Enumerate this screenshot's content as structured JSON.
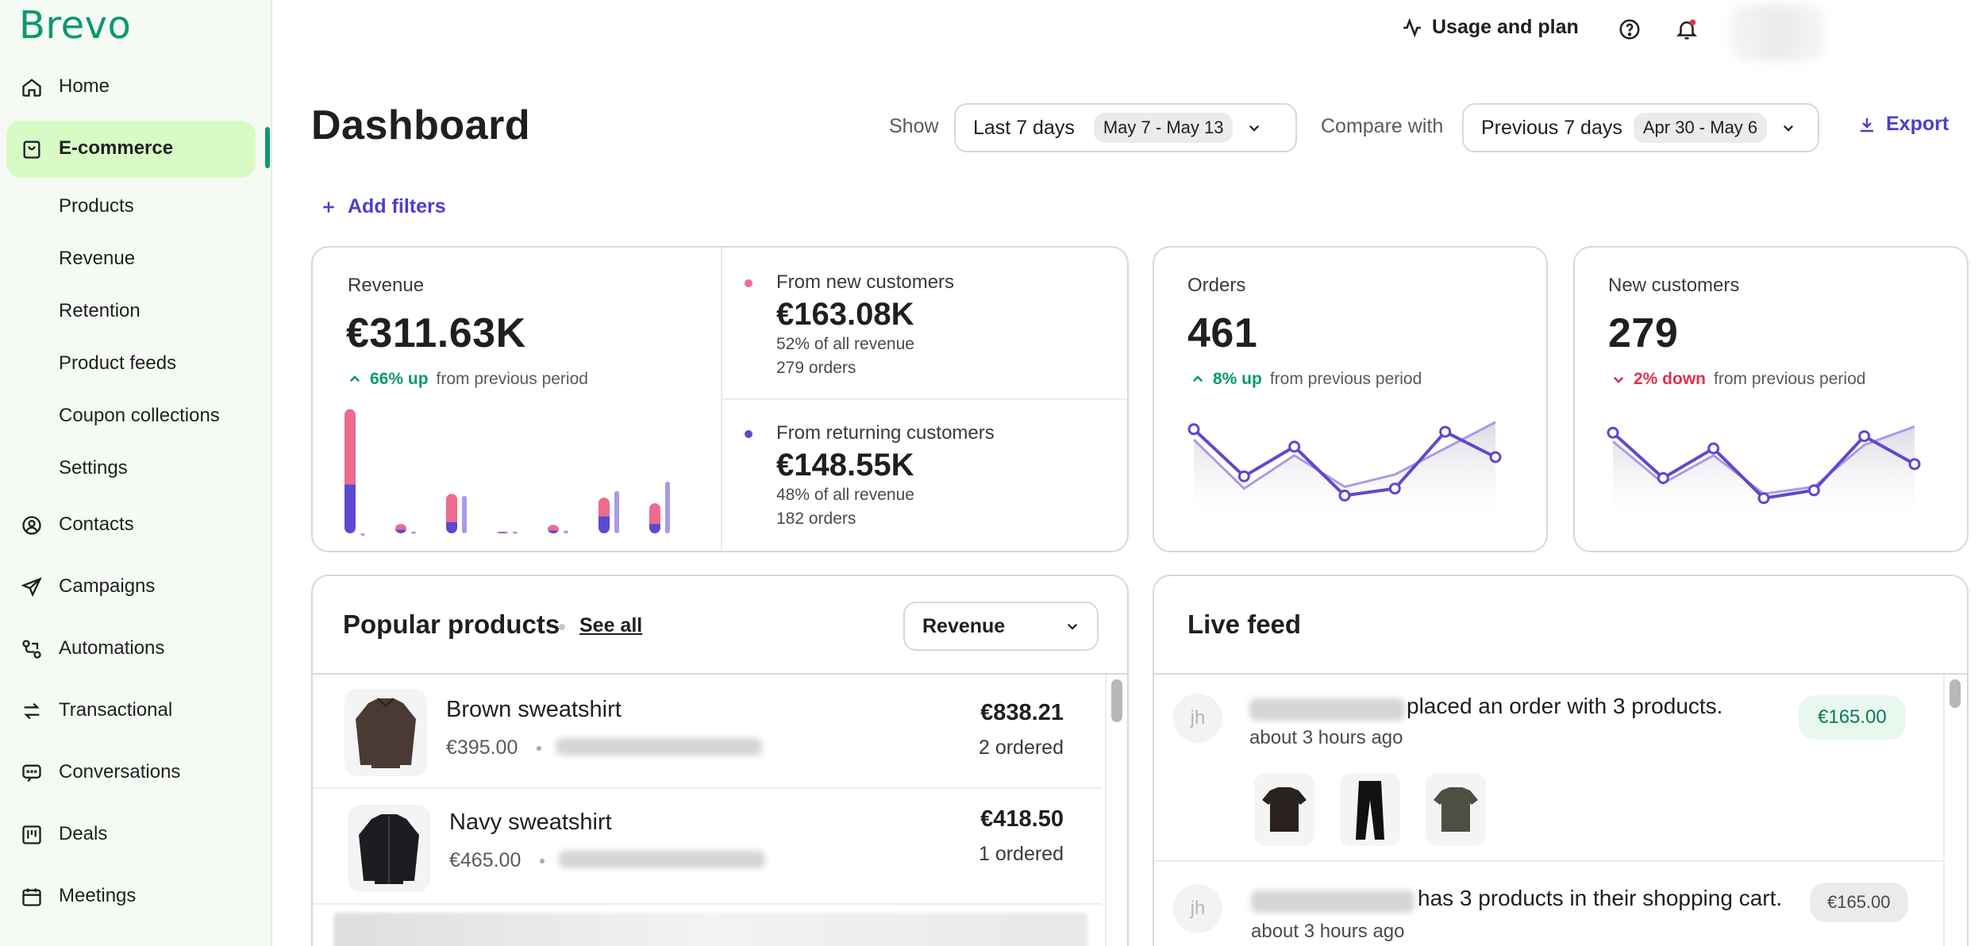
{
  "brand": {
    "logo": "Brevo"
  },
  "sidebar": {
    "items": [
      {
        "label": "Home",
        "icon": "home-icon"
      },
      {
        "label": "E-commerce",
        "icon": "shopping-bag-icon"
      },
      {
        "label": "Contacts",
        "icon": "contacts-icon"
      },
      {
        "label": "Campaigns",
        "icon": "send-icon"
      },
      {
        "label": "Automations",
        "icon": "automation-icon"
      },
      {
        "label": "Transactional",
        "icon": "transactional-icon"
      },
      {
        "label": "Conversations",
        "icon": "chat-icon"
      },
      {
        "label": "Deals",
        "icon": "kanban-icon"
      },
      {
        "label": "Meetings",
        "icon": "calendar-icon"
      }
    ],
    "ecommerce_sub": [
      "Products",
      "Revenue",
      "Retention",
      "Product feeds",
      "Coupon collections",
      "Settings"
    ]
  },
  "topbar": {
    "usage": "Usage and plan"
  },
  "header": {
    "title": "Dashboard",
    "show_label": "Show",
    "period": "Last 7 days",
    "period_range": "May 7 - May 13",
    "compare_label": "Compare with",
    "compare_period": "Previous 7 days",
    "compare_range": "Apr 30 - May 6",
    "export": "Export",
    "add_filters": "Add filters"
  },
  "revenue": {
    "label": "Revenue",
    "value": "€311.63K",
    "change_strong": "66% up",
    "change_rest": "from previous period",
    "new": {
      "label": "From new customers",
      "value": "€163.08K",
      "share": "52% of all revenue",
      "orders": "279 orders"
    },
    "returning": {
      "label": "From returning customers",
      "value": "€148.55K",
      "share": "48% of all revenue",
      "orders": "182 orders"
    }
  },
  "orders": {
    "label": "Orders",
    "value": "461",
    "change_strong": "8% up",
    "change_rest": "from previous period"
  },
  "new_customers": {
    "label": "New customers",
    "value": "279",
    "change_strong": "2% down",
    "change_rest": "from previous period"
  },
  "chart_data": [
    {
      "type": "bar",
      "title": "",
      "note": "Revenue mini chart, stacked new (pink) and returning (purple) with previous period (light)",
      "categories": [
        "1",
        "2",
        "3",
        "4",
        "5",
        "6",
        "7"
      ],
      "series": [
        {
          "name": "",
          "values": [
            52,
            4,
            12,
            1,
            3,
            18,
            10
          ]
        },
        {
          "name": "",
          "values": [
            80,
            6,
            30,
            1,
            6,
            20,
            22
          ]
        },
        {
          "name": "",
          "values": [
            0,
            2,
            40,
            2,
            3,
            45,
            55
          ]
        }
      ],
      "ylim": [
        0,
        135
      ]
    },
    {
      "type": "line",
      "title": "",
      "x": [
        1,
        2,
        3,
        4,
        5,
        6,
        7
      ],
      "series": [
        {
          "name": "",
          "values": [
            92,
            38,
            72,
            16,
            24,
            89,
            60
          ]
        },
        {
          "name": "",
          "values": [
            80,
            24,
            62,
            26,
            40,
            70,
            100
          ]
        }
      ],
      "ylim": [
        0,
        100
      ]
    },
    {
      "type": "line",
      "title": "",
      "x": [
        1,
        2,
        3,
        4,
        5,
        6,
        7
      ],
      "series": [
        {
          "name": "",
          "values": [
            88,
            36,
            70,
            13,
            22,
            84,
            52
          ]
        },
        {
          "name": "",
          "values": [
            78,
            30,
            62,
            18,
            26,
            74,
            95
          ]
        }
      ],
      "ylim": [
        0,
        100
      ]
    }
  ],
  "popular": {
    "title": "Popular products",
    "see_all": "See all",
    "sort": "Revenue",
    "products": [
      {
        "name": "Brown sweatshirt",
        "price": "€395.00",
        "amount": "€838.21",
        "ordered": "2 ordered",
        "color": "#4a3a33"
      },
      {
        "name": "Navy sweatshirt",
        "price": "€465.00",
        "amount": "€418.50",
        "ordered": "1 ordered",
        "color": "#1c1c22"
      }
    ]
  },
  "feed": {
    "title": "Live feed",
    "items": [
      {
        "initials": "jh",
        "text": "placed an order with 3 products.",
        "time": "about 3 hours ago",
        "amount": "€165.00"
      },
      {
        "initials": "jh",
        "text": "has 3 products in their shopping cart.",
        "time": "about 3 hours ago",
        "amount": "€165.00"
      }
    ]
  },
  "colors": {
    "accent": "#4b3fcc",
    "brand": "#0b996e",
    "pink": "#ec6b8f",
    "purple": "#5b4ad0",
    "light_purple": "#a99be6",
    "up": "#0b996e",
    "down": "#e0304f"
  }
}
